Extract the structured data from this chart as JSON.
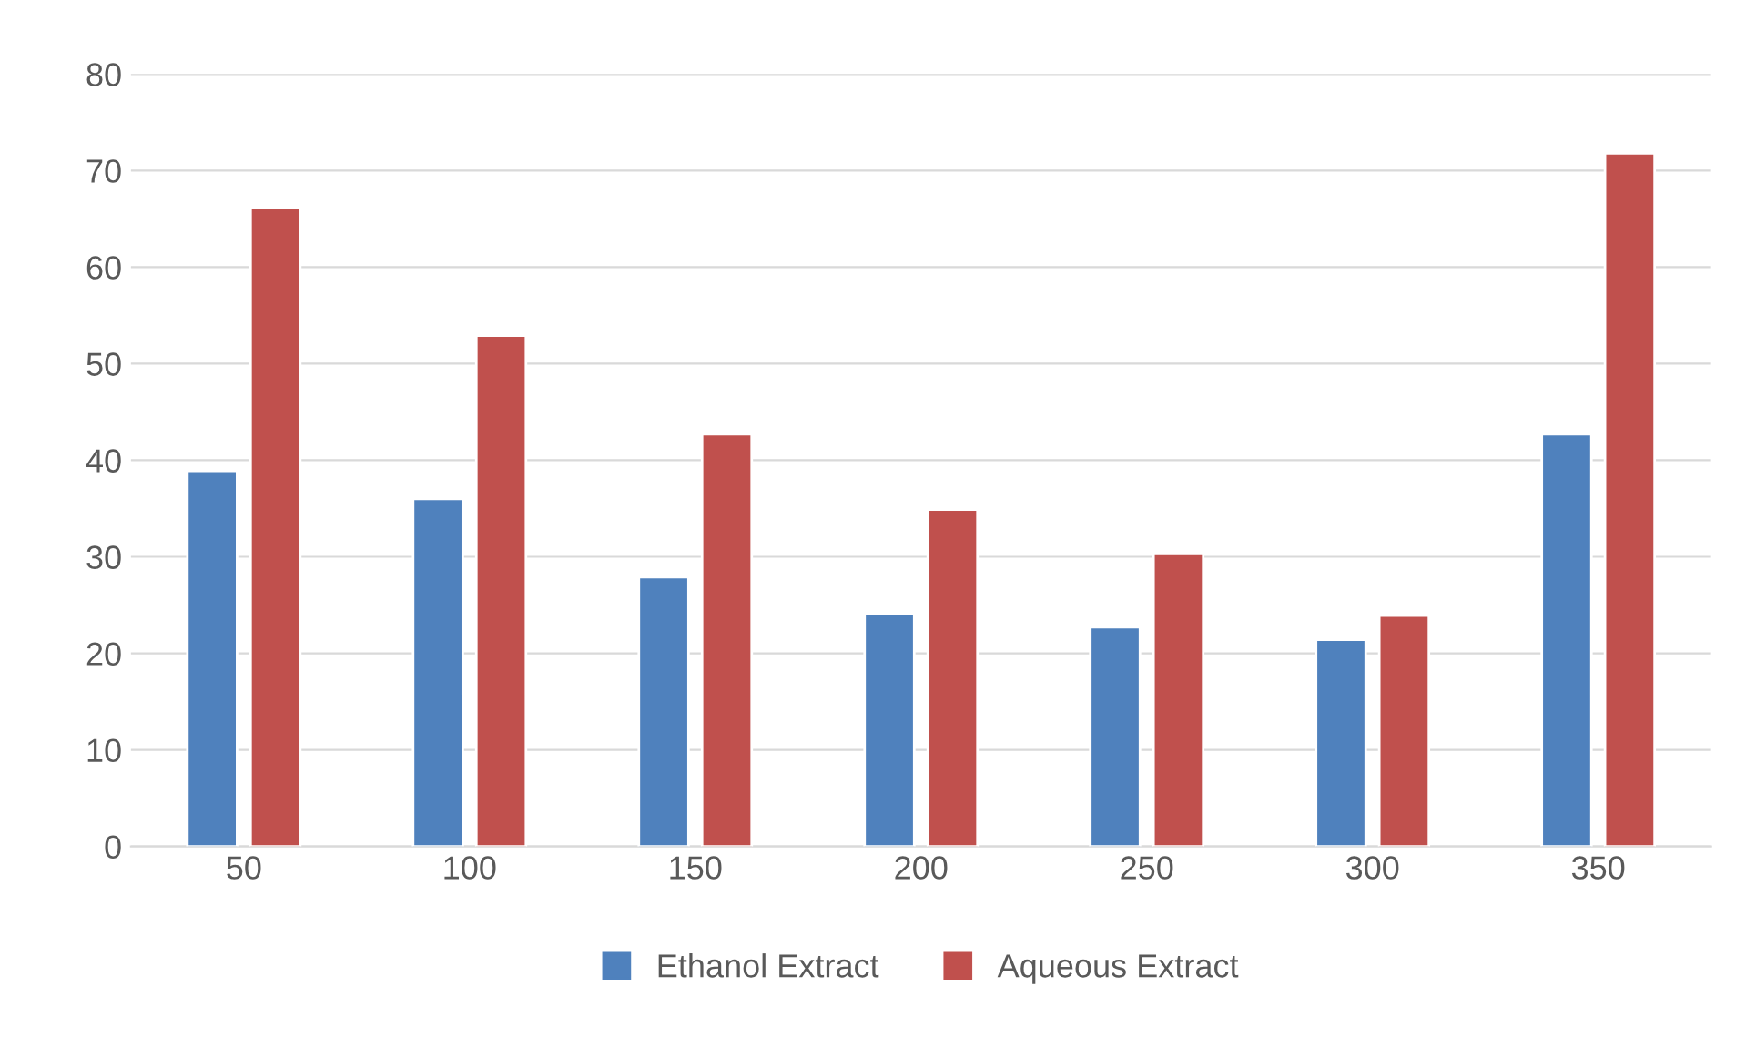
{
  "chart_data": {
    "type": "bar",
    "categories": [
      "50",
      "100",
      "150",
      "200",
      "250",
      "300",
      "350"
    ],
    "series": [
      {
        "name": "Ethanol Extract",
        "color": "#4f81bd",
        "values": [
          38.9,
          36.0,
          27.9,
          24.1,
          22.7,
          21.4,
          42.7
        ]
      },
      {
        "name": "Aqueous Extract",
        "color": "#c0504d",
        "values": [
          66.2,
          52.9,
          42.7,
          34.9,
          30.3,
          23.9,
          71.8
        ]
      }
    ],
    "ylim": [
      0,
      80
    ],
    "yticks": [
      0,
      10,
      20,
      30,
      40,
      50,
      60,
      70,
      80
    ],
    "grid": "y",
    "legend": "bottom"
  }
}
